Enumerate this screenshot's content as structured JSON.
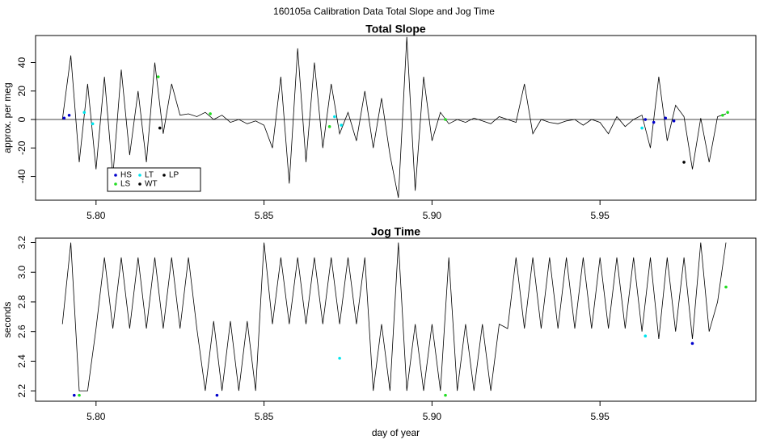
{
  "title": "160105a   Calibration Data Total Slope and Jog Time",
  "chart_data": [
    {
      "type": "line",
      "title": "Total Slope",
      "y_label": "approx. per meg",
      "color": "#000000",
      "xlim": [
        5.782,
        5.9964
      ],
      "ylim": [
        -56.7,
        59
      ],
      "hline": 0,
      "legend": "bottom-left",
      "xticks": [
        {
          "value": 5.8,
          "label": "5.80"
        },
        {
          "value": 5.85,
          "label": "5.85"
        },
        {
          "value": 5.9,
          "label": "5.90"
        },
        {
          "value": 5.95,
          "label": "5.95"
        }
      ],
      "yticks": [
        -40,
        -20,
        0,
        20,
        40
      ],
      "x": [
        5.79,
        5.7925,
        5.795,
        5.7975,
        5.8,
        5.8025,
        5.805,
        5.8075,
        5.81,
        5.8125,
        5.815,
        5.8175,
        5.82,
        5.8225,
        5.825,
        5.8275,
        5.83,
        5.8325,
        5.835,
        5.8375,
        5.84,
        5.8425,
        5.845,
        5.8475,
        5.85,
        5.8525,
        5.855,
        5.8575,
        5.86,
        5.8625,
        5.865,
        5.8675,
        5.87,
        5.8725,
        5.875,
        5.8775,
        5.88,
        5.8825,
        5.885,
        5.8875,
        5.89,
        5.8925,
        5.895,
        5.8975,
        5.9,
        5.9025,
        5.905,
        5.9075,
        5.91,
        5.9125,
        5.915,
        5.9175,
        5.92,
        5.9225,
        5.925,
        5.9275,
        5.93,
        5.9325,
        5.935,
        5.9375,
        5.94,
        5.9425,
        5.945,
        5.9475,
        5.95,
        5.9525,
        5.955,
        5.9575,
        5.96,
        5.9625,
        5.965,
        5.9675,
        5.97,
        5.9725,
        5.975,
        5.9775,
        5.98,
        5.9825,
        5.985,
        5.9875
      ],
      "values": [
        0,
        45,
        -30,
        25,
        -35,
        30,
        -40,
        35,
        -25,
        20,
        -30,
        40,
        -10,
        25,
        3,
        4,
        2,
        5,
        0,
        3,
        -2,
        0,
        -3,
        -1,
        -4,
        -20,
        30,
        -45,
        50,
        -30,
        40,
        -20,
        25,
        -10,
        5,
        -15,
        20,
        -20,
        15,
        -25,
        -55,
        58,
        -50,
        30,
        -15,
        5,
        -3,
        0,
        -2,
        1,
        -1,
        -3,
        2,
        0,
        -2,
        25,
        -10,
        0,
        -2,
        -3,
        -1,
        0,
        -4,
        0,
        -2,
        -10,
        2,
        -5,
        0,
        3,
        -20,
        30,
        -15,
        10,
        2,
        -35,
        1,
        -30,
        2,
        4
      ],
      "series": [
        {
          "name": "HS",
          "color": "#0000cc",
          "x": [
            5.7905,
            5.792,
            5.9635,
            5.966,
            5.9695,
            5.972
          ],
          "values": [
            1,
            3,
            0,
            -2,
            1,
            -1
          ]
        },
        {
          "name": "LT",
          "color": "#00e5ee",
          "x": [
            5.7965,
            5.799,
            5.871,
            5.873,
            5.9625
          ],
          "values": [
            5,
            -3,
            2,
            -4,
            -6
          ]
        },
        {
          "name": "LP",
          "color": "#000000",
          "x": [
            5.819
          ],
          "values": [
            -6
          ]
        },
        {
          "name": "LS",
          "color": "#22dd22",
          "x": [
            5.8185,
            5.834,
            5.8695,
            5.904,
            5.9865,
            5.988
          ],
          "values": [
            30,
            4,
            -5,
            0,
            3,
            5
          ]
        },
        {
          "name": "WT",
          "color": "#000000",
          "x": [
            5.975
          ],
          "values": [
            -30
          ]
        }
      ]
    },
    {
      "type": "line",
      "title": "Jog Time",
      "y_label": "seconds",
      "x_label": "day of year",
      "color": "#000000",
      "xlim": [
        5.782,
        5.9964
      ],
      "ylim": [
        2.13,
        3.23
      ],
      "xticks": [
        {
          "value": 5.8,
          "label": "5.80"
        },
        {
          "value": 5.85,
          "label": "5.85"
        },
        {
          "value": 5.9,
          "label": "5.90"
        },
        {
          "value": 5.95,
          "label": "5.95"
        }
      ],
      "yticks": [
        2.2,
        2.4,
        2.6,
        2.8,
        {
          "value": 3,
          "label": "3.0"
        },
        3.2
      ],
      "x": [
        5.79,
        5.7925,
        5.795,
        5.7975,
        5.8,
        5.8025,
        5.805,
        5.8075,
        5.81,
        5.8125,
        5.815,
        5.8175,
        5.82,
        5.8225,
        5.825,
        5.8275,
        5.83,
        5.8325,
        5.835,
        5.8375,
        5.84,
        5.8425,
        5.845,
        5.8475,
        5.85,
        5.8525,
        5.855,
        5.8575,
        5.86,
        5.8625,
        5.865,
        5.8675,
        5.87,
        5.8725,
        5.875,
        5.8775,
        5.88,
        5.8825,
        5.885,
        5.8875,
        5.89,
        5.8925,
        5.895,
        5.8975,
        5.9,
        5.9025,
        5.905,
        5.9075,
        5.91,
        5.9125,
        5.915,
        5.9175,
        5.92,
        5.9225,
        5.925,
        5.9275,
        5.93,
        5.9325,
        5.935,
        5.9375,
        5.94,
        5.9425,
        5.945,
        5.9475,
        5.95,
        5.9525,
        5.955,
        5.9575,
        5.96,
        5.9625,
        5.965,
        5.9675,
        5.97,
        5.9725,
        5.975,
        5.9775,
        5.98,
        5.9825,
        5.985,
        5.9875
      ],
      "values": [
        2.65,
        3.2,
        2.2,
        2.2,
        2.62,
        3.1,
        2.62,
        3.1,
        2.62,
        3.1,
        2.62,
        3.1,
        2.62,
        3.1,
        2.62,
        3.1,
        2.62,
        2.2,
        2.67,
        2.2,
        2.67,
        2.2,
        2.67,
        2.2,
        3.2,
        2.65,
        3.1,
        2.65,
        3.1,
        2.65,
        3.1,
        2.65,
        3.1,
        2.65,
        3.1,
        2.65,
        3.1,
        2.2,
        2.65,
        2.2,
        3.2,
        2.2,
        2.65,
        2.2,
        2.65,
        2.2,
        3.1,
        2.2,
        2.65,
        2.2,
        2.65,
        2.2,
        2.65,
        2.62,
        3.1,
        2.62,
        3.1,
        2.62,
        3.1,
        2.62,
        3.1,
        2.62,
        3.1,
        2.62,
        3.1,
        2.62,
        3.1,
        2.62,
        3.1,
        2.6,
        3.1,
        2.55,
        3.1,
        2.6,
        3.1,
        2.55,
        3.2,
        2.6,
        2.8,
        3.2
      ],
      "series": [
        {
          "color": "#0000cc",
          "x": [
            5.7935,
            5.836,
            5.9775
          ],
          "values": [
            2.17,
            2.17,
            2.52
          ]
        },
        {
          "color": "#00e5ee",
          "x": [
            5.8725,
            5.9635
          ],
          "values": [
            2.42,
            2.57
          ]
        },
        {
          "color": "#22dd22",
          "x": [
            5.795,
            5.904,
            5.9875
          ],
          "values": [
            2.17,
            2.17,
            2.9
          ]
        }
      ]
    }
  ]
}
